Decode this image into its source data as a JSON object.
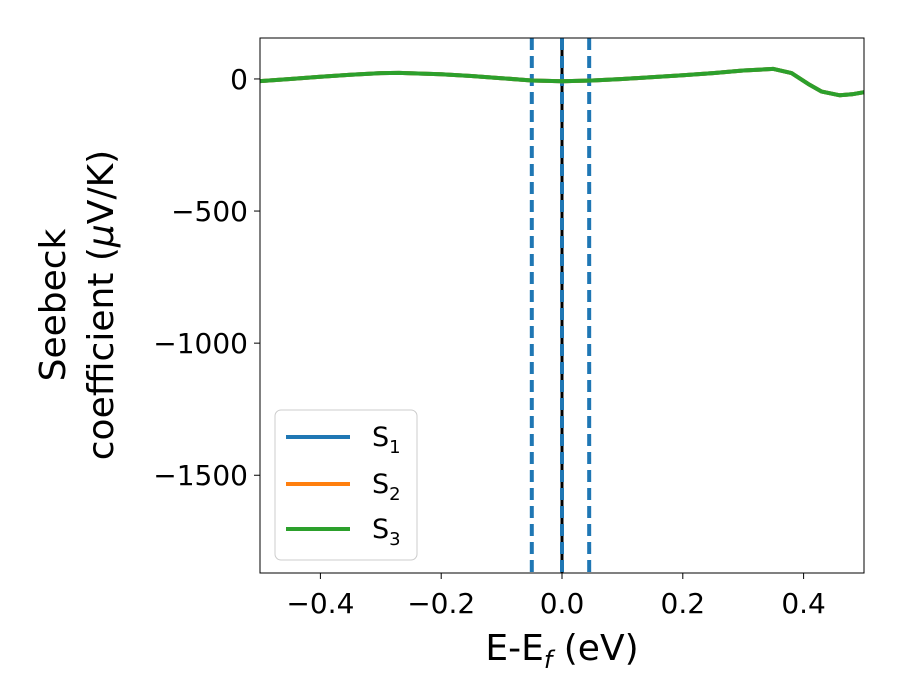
{
  "chart_data": {
    "type": "line",
    "xlabel": "E-E",
    "xlabel_sub": "f",
    "xlabel_unit": " (eV)",
    "ylabel_line1": "Seebeck",
    "ylabel_line2": "coefficient  (",
    "ylabel_mu": "μ",
    "ylabel_unit": "V/K)",
    "xlim": [
      -0.5,
      0.5
    ],
    "ylim": [
      -1870,
      155
    ],
    "xticks": [
      -0.4,
      -0.2,
      0.0,
      0.2,
      0.4
    ],
    "xtick_labels": [
      "−0.4",
      "−0.2",
      "0.0",
      "0.2",
      "0.4"
    ],
    "yticks": [
      0,
      -500,
      -1000,
      -1500
    ],
    "ytick_labels": [
      "0",
      "−500",
      "−1000",
      "−1500"
    ],
    "grid": false,
    "legend_position": "lower-left",
    "vertical_lines": [
      {
        "x": -0.05,
        "color": "#1f77b4",
        "style": "dashed"
      },
      {
        "x": 0.0,
        "color": "#000000",
        "style": "solid"
      },
      {
        "x": 0.0,
        "color": "#1f77b4",
        "style": "dashed"
      },
      {
        "x": 0.045,
        "color": "#1f77b4",
        "style": "dashed"
      }
    ],
    "x": [
      -0.5,
      -0.45,
      -0.4,
      -0.35,
      -0.3,
      -0.27,
      -0.2,
      -0.15,
      -0.1,
      -0.05,
      0.0,
      0.05,
      0.1,
      0.15,
      0.2,
      0.25,
      0.3,
      0.35,
      0.38,
      0.41,
      0.43,
      0.46,
      0.48,
      0.5
    ],
    "series": [
      {
        "name": "S",
        "sub": "1",
        "color": "#1f77b4",
        "values": [
          -8,
          0,
          8,
          16,
          22,
          23,
          18,
          11,
          3,
          -6,
          -9,
          -6,
          0,
          7,
          14,
          22,
          32,
          38,
          22,
          -22,
          -48,
          -62,
          -58,
          -50
        ]
      },
      {
        "name": "S",
        "sub": "2",
        "color": "#ff7f0e",
        "values": [
          -8,
          0,
          8,
          16,
          22,
          23,
          18,
          11,
          3,
          -6,
          -9,
          -6,
          0,
          7,
          14,
          22,
          32,
          38,
          22,
          -22,
          -48,
          -62,
          -58,
          -50
        ]
      },
      {
        "name": "S",
        "sub": "3",
        "color": "#2ca02c",
        "values": [
          -8,
          0,
          8,
          16,
          22,
          23,
          18,
          11,
          3,
          -6,
          -9,
          -6,
          0,
          7,
          14,
          22,
          32,
          38,
          22,
          -22,
          -48,
          -62,
          -58,
          -50
        ]
      }
    ]
  }
}
